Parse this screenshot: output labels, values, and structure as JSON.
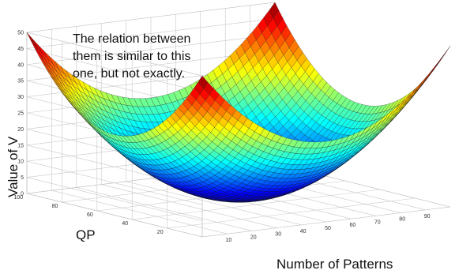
{
  "chart_data": {
    "type": "surface3d",
    "surface": "paraboloid",
    "note_lines": [
      "The relation between",
      "them is similar to this",
      "one, but not exactly."
    ],
    "xlabel": "Number of Patterns",
    "ylabel": "QP",
    "zlabel": "Value of V",
    "xlim": [
      0,
      100
    ],
    "ylim": [
      0,
      100
    ],
    "zlim": [
      0,
      50
    ],
    "xticks": [
      10,
      20,
      30,
      40,
      50,
      60,
      70,
      80,
      90
    ],
    "yticks": [
      20,
      40,
      60,
      80,
      100
    ],
    "zticks": [
      0,
      5,
      10,
      15,
      20,
      25,
      30,
      35,
      40,
      45,
      50
    ],
    "z_min": 0,
    "z_at_corners": 50,
    "colormap": "jet",
    "grid": true
  }
}
